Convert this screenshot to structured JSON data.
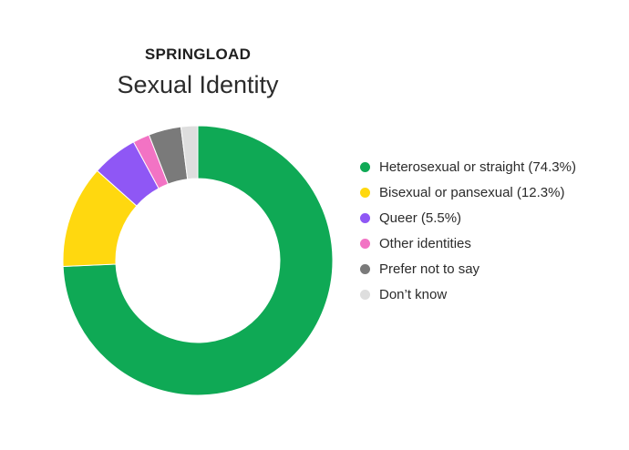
{
  "chart_data": {
    "type": "pie",
    "subtype": "donut",
    "brand": "SPRINGLOAD",
    "title": "Sexual Identity",
    "legend_placement": "right",
    "slices": [
      {
        "label": "Heterosexual or straight (74.3%)",
        "value": 74.3,
        "color": "#0fa955"
      },
      {
        "label": "Bisexual or pansexual (12.3%)",
        "value": 12.3,
        "color": "#ffd80f"
      },
      {
        "label": "Queer (5.5%)",
        "value": 5.5,
        "color": "#8f57f5"
      },
      {
        "label": "Other identities",
        "value": 2.0,
        "color": "#f273c4"
      },
      {
        "label": "Prefer not to say",
        "value": 3.9,
        "color": "#7a7a7a"
      },
      {
        "label": "Don’t know",
        "value": 2.0,
        "color": "#dedede"
      }
    ]
  }
}
